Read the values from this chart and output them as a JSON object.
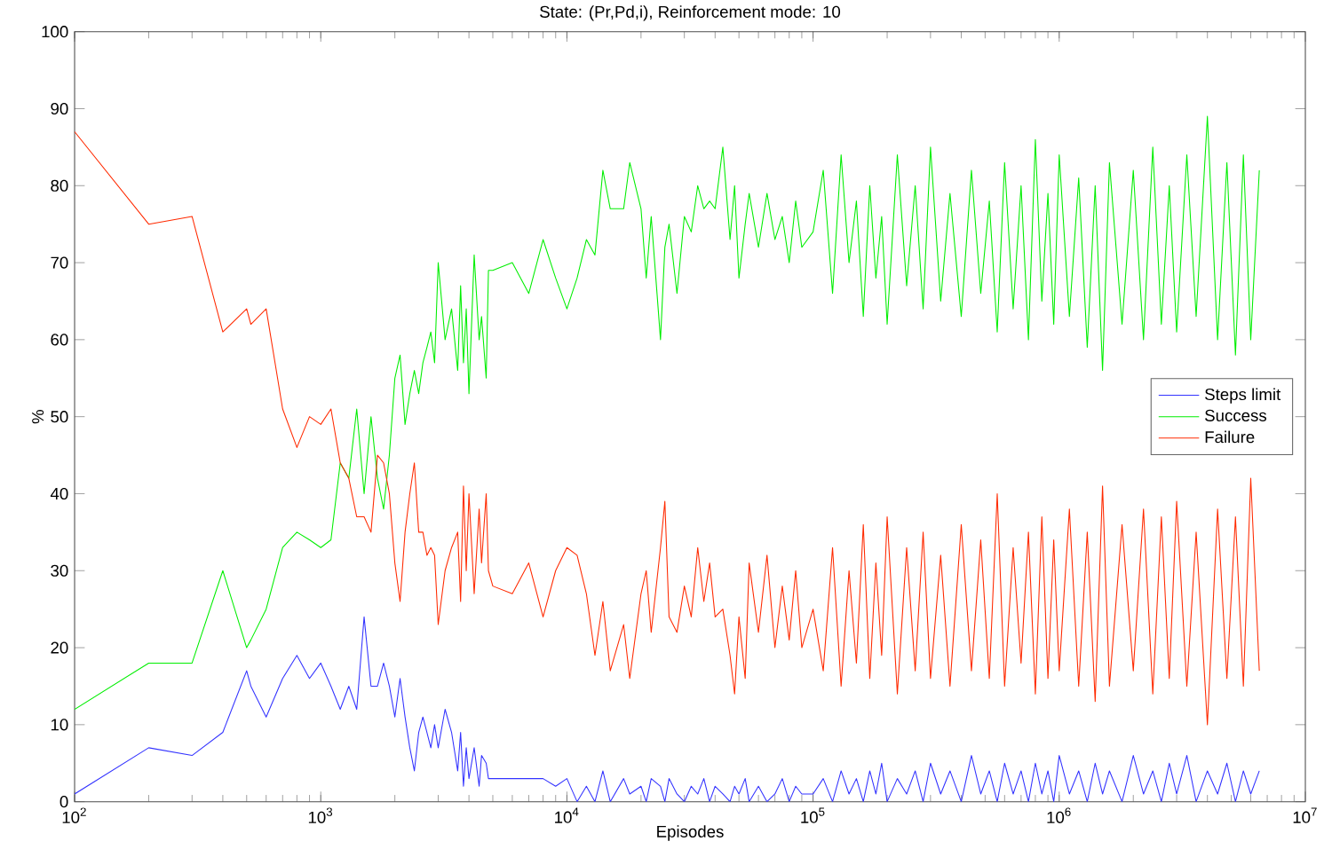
{
  "chart_data": {
    "type": "line",
    "title": "State: (Pr,Pd,i), Reinforcement mode: 10",
    "xlabel": "Episodes",
    "ylabel": "%",
    "log": "x",
    "grid": false,
    "legend": "right",
    "marker": "none",
    "line_style": "solid",
    "xlim": [
      100,
      10000000
    ],
    "ylim": [
      0,
      100
    ],
    "xticks": [
      {
        "value": 100,
        "label": "10$^{2}$"
      },
      {
        "value": 1000,
        "label": "10$^{3}$"
      },
      {
        "value": 10000,
        "label": "10$^{4}$"
      },
      {
        "value": 100000,
        "label": "10$^{5}$"
      },
      {
        "value": 1000000,
        "label": "10$^{6}$"
      },
      {
        "value": 10000000,
        "label": "10$^{7}$"
      }
    ],
    "yticks": [
      0,
      10,
      20,
      30,
      40,
      50,
      60,
      70,
      80,
      90,
      100
    ],
    "x": [
      100,
      200,
      300,
      400,
      500,
      520,
      600,
      700,
      800,
      900,
      1000,
      1100,
      1200,
      1300,
      1400,
      1500,
      1600,
      1700,
      1800,
      1900,
      2000,
      2100,
      2200,
      2300,
      2400,
      2500,
      2600,
      2700,
      2800,
      2900,
      3000,
      3200,
      3400,
      3600,
      3700,
      3800,
      3900,
      4000,
      4200,
      4400,
      4500,
      4700,
      4800,
      5000,
      6000,
      7000,
      8000,
      9000,
      10000,
      11000,
      12000,
      13000,
      14000,
      15000,
      17000,
      18000,
      20000,
      21000,
      22000,
      24000,
      25000,
      26000,
      28000,
      30000,
      32000,
      34000,
      36000,
      38000,
      40000,
      43000,
      46000,
      48000,
      50000,
      53000,
      55000,
      60000,
      65000,
      70000,
      75000,
      80000,
      85000,
      90000,
      100000,
      110000,
      120000,
      130000,
      140000,
      150000,
      160000,
      170000,
      180000,
      190000,
      200000,
      220000,
      240000,
      260000,
      280000,
      300000,
      330000,
      360000,
      400000,
      440000,
      480000,
      520000,
      560000,
      600000,
      650000,
      700000,
      750000,
      800000,
      850000,
      900000,
      950000,
      1000000,
      1100000,
      1200000,
      1300000,
      1400000,
      1500000,
      1600000,
      1800000,
      2000000,
      2200000,
      2400000,
      2600000,
      2800000,
      3000000,
      3300000,
      3600000,
      4000000,
      4400000,
      4800000,
      5200000,
      5600000,
      6000000,
      6500000
    ],
    "series": [
      {
        "name": "Steps limit",
        "color": "#3333ff",
        "values": [
          1,
          7,
          6,
          9,
          17,
          15,
          11,
          16,
          19,
          16,
          18,
          15,
          12,
          15,
          12,
          24,
          15,
          15,
          18,
          15,
          11,
          16,
          11,
          7,
          4,
          9,
          11,
          9,
          7,
          10,
          7,
          12,
          9,
          4,
          9,
          2,
          7,
          3,
          7,
          2,
          6,
          5,
          3,
          3,
          3,
          3,
          3,
          2,
          3,
          0,
          2,
          0,
          4,
          0,
          3,
          1,
          2,
          0,
          3,
          2,
          0,
          3,
          1,
          0,
          2,
          1,
          3,
          0,
          2,
          1,
          0,
          2,
          1,
          3,
          0,
          2,
          0,
          1,
          3,
          0,
          2,
          1,
          1,
          3,
          0,
          4,
          1,
          3,
          0,
          4,
          1,
          5,
          0,
          3,
          1,
          4,
          0,
          5,
          1,
          4,
          0,
          6,
          1,
          4,
          0,
          5,
          1,
          4,
          0,
          5,
          1,
          4,
          0,
          6,
          1,
          4,
          0,
          5,
          1,
          4,
          0,
          6,
          1,
          4,
          0,
          5,
          1,
          6,
          0,
          4,
          1,
          5,
          0,
          4,
          1,
          4
        ]
      },
      {
        "name": "Success",
        "color": "#00ee00",
        "values": [
          12,
          18,
          18,
          30,
          20,
          21,
          25,
          33,
          35,
          34,
          33,
          34,
          44,
          42,
          51,
          40,
          50,
          42,
          38,
          45,
          55,
          58,
          49,
          53,
          56,
          53,
          57,
          59,
          61,
          57,
          70,
          60,
          64,
          56,
          67,
          57,
          64,
          53,
          71,
          60,
          63,
          55,
          69,
          69,
          70,
          66,
          73,
          68,
          64,
          68,
          73,
          71,
          82,
          77,
          77,
          83,
          77,
          68,
          76,
          60,
          72,
          75,
          66,
          76,
          74,
          80,
          77,
          78,
          77,
          85,
          73,
          80,
          68,
          75,
          79,
          72,
          79,
          73,
          76,
          70,
          78,
          72,
          74,
          82,
          66,
          84,
          70,
          78,
          63,
          80,
          68,
          76,
          62,
          84,
          67,
          80,
          64,
          85,
          65,
          79,
          63,
          82,
          66,
          78,
          61,
          83,
          64,
          80,
          60,
          86,
          65,
          79,
          62,
          84,
          63,
          81,
          59,
          80,
          56,
          83,
          62,
          82,
          60,
          85,
          62,
          80,
          61,
          84,
          63,
          89,
          60,
          83,
          58,
          84,
          60,
          82
        ]
      },
      {
        "name": "Failure",
        "color": "#ff2a00",
        "values": [
          87,
          75,
          76,
          61,
          64,
          62,
          64,
          51,
          46,
          50,
          49,
          51,
          44,
          42,
          37,
          37,
          35,
          45,
          44,
          40,
          31,
          26,
          35,
          40,
          44,
          35,
          35,
          32,
          33,
          32,
          23,
          30,
          33,
          35,
          26,
          41,
          30,
          40,
          27,
          38,
          31,
          40,
          30,
          28,
          27,
          31,
          24,
          30,
          33,
          32,
          27,
          19,
          26,
          17,
          23,
          16,
          27,
          30,
          22,
          33,
          39,
          24,
          22,
          28,
          24,
          33,
          26,
          31,
          24,
          25,
          19,
          14,
          24,
          16,
          31,
          22,
          32,
          20,
          28,
          21,
          30,
          20,
          25,
          17,
          33,
          15,
          30,
          18,
          36,
          16,
          31,
          19,
          37,
          14,
          33,
          17,
          35,
          16,
          32,
          15,
          36,
          17,
          34,
          16,
          40,
          15,
          33,
          18,
          35,
          14,
          37,
          16,
          34,
          17,
          38,
          15,
          35,
          13,
          41,
          15,
          36,
          17,
          38,
          14,
          37,
          16,
          39,
          15,
          35,
          10,
          38,
          16,
          37,
          15,
          42,
          17
        ]
      }
    ]
  }
}
